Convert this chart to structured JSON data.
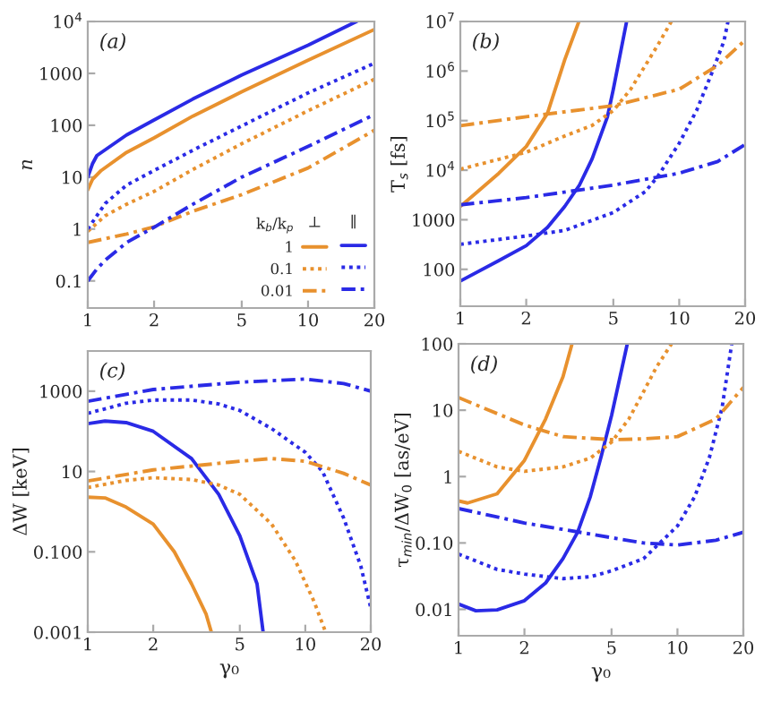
{
  "chart_data": [
    {
      "type": "line",
      "ylabel": "n",
      "annotations": [
        "(a)",
        "⊥",
        "∥"
      ],
      "legend_title": "k$_{b}$/k$_{p}$",
      "legend": "bottom right",
      "log": "xy",
      "xlim": [
        1,
        20
      ],
      "xticks": [
        1,
        2,
        5,
        10,
        20
      ],
      "ylim": [
        0.03,
        10000
      ],
      "yticks": [
        0.1,
        1,
        10,
        100,
        1000,
        {
          "value": 10000,
          "label": "10$^{4}$"
        }
      ],
      "series": [
        {
          "name": "1",
          "color": "#e8912e",
          "line_style": "solid",
          "x": [
            1,
            1.05,
            1.15,
            1.5,
            2,
            3,
            5,
            10,
            20
          ],
          "values": [
            5.7,
            9,
            13.4,
            30,
            57,
            150,
            440,
            1800,
            7000
          ]
        },
        {
          "color": "#2a2ae6",
          "line_style": "solid",
          "x": [
            1,
            1.05,
            1.1,
            1.5,
            2,
            3,
            5,
            10,
            16.6
          ],
          "values": [
            10,
            18,
            26,
            65,
            126,
            320,
            930,
            3500,
            10000
          ]
        },
        {
          "name": "0.1",
          "color": "#e8912e",
          "line_style": "dotted",
          "x": [
            1,
            1.2,
            1.5,
            2,
            3,
            5,
            10,
            20
          ],
          "values": [
            0.9,
            1.8,
            3,
            5.3,
            14,
            44,
            190,
            770
          ]
        },
        {
          "color": "#2a2ae6",
          "line_style": "dotted",
          "x": [
            1,
            1.2,
            1.5,
            2,
            3,
            5,
            10,
            20
          ],
          "values": [
            1,
            3.1,
            7,
            13.4,
            33,
            97,
            420,
            1570
          ]
        },
        {
          "name": "0.01",
          "color": "#e8912e",
          "line_style": "dashdot",
          "x": [
            1,
            1.5,
            2,
            3,
            5,
            10,
            20
          ],
          "values": [
            0.55,
            0.8,
            1.1,
            2.2,
            4.6,
            15,
            80
          ]
        },
        {
          "color": "#2a2ae6",
          "line_style": "dashdot",
          "x": [
            1,
            1.1,
            1.2,
            1.5,
            2,
            3,
            5,
            10,
            20
          ],
          "values": [
            0.1,
            0.17,
            0.25,
            0.55,
            1.08,
            3,
            10,
            39,
            160
          ]
        }
      ]
    },
    {
      "type": "line",
      "ylabel": "T$_{s}$ [fs]",
      "annotations": [
        "(b)"
      ],
      "log": "xy",
      "xlim": [
        1,
        20
      ],
      "xticks": [
        1,
        2,
        5,
        10,
        20
      ],
      "ylim": [
        18,
        10000000
      ],
      "yticks": [
        100,
        1000,
        {
          "value": 10000,
          "label": "10$^{4}$"
        },
        {
          "value": 100000,
          "label": "10$^{5}$"
        },
        {
          "value": 1000000,
          "label": "10$^{6}$"
        },
        {
          "value": 10000000,
          "label": "10$^{7}$"
        }
      ],
      "series": [
        {
          "color": "#e8912e",
          "line_style": "solid",
          "x": [
            1,
            1.2,
            1.5,
            2,
            2.5,
            3,
            3.48
          ],
          "values": [
            1860,
            3700,
            8700,
            30000,
            140000,
            1700000,
            10000000
          ]
        },
        {
          "color": "#2a2ae6",
          "line_style": "solid",
          "x": [
            1,
            1.5,
            2,
            2.5,
            3,
            3.5,
            4,
            4.7,
            5,
            5.75
          ],
          "values": [
            58,
            150,
            300,
            700,
            1860,
            5000,
            17000,
            120000,
            430000,
            10000000
          ]
        },
        {
          "color": "#e8912e",
          "line_style": "dotted",
          "x": [
            1,
            2,
            3,
            4,
            5,
            6,
            7,
            8,
            9.2
          ],
          "values": [
            10500,
            23000,
            49000,
            80000,
            160000,
            430000,
            1300000,
            3400000,
            10000000
          ]
        },
        {
          "color": "#2a2ae6",
          "line_style": "dotted",
          "x": [
            1,
            2,
            3,
            5,
            7,
            8,
            10,
            12,
            14,
            16,
            16.7
          ],
          "values": [
            320,
            470,
            610,
            1400,
            3700,
            7600,
            35000,
            160000,
            850000,
            4000000,
            10000000
          ]
        },
        {
          "color": "#e8912e",
          "line_style": "dashdot",
          "x": [
            1,
            2,
            5,
            10,
            15,
            20
          ],
          "values": [
            79000,
            120000,
            200000,
            430000,
            1300000,
            4200000
          ]
        },
        {
          "color": "#2a2ae6",
          "line_style": "dashdot",
          "x": [
            1,
            2,
            5,
            10,
            15,
            20
          ],
          "values": [
            2000,
            2800,
            5000,
            8700,
            15000,
            33000
          ]
        }
      ]
    },
    {
      "type": "line",
      "xlabel": "γ₀",
      "ylabel": "ΔW [keV]",
      "annotations": [
        "(c)"
      ],
      "log": "xy",
      "xlim": [
        1,
        20
      ],
      "xticks": [
        1,
        2,
        5,
        10,
        20
      ],
      "ylim": [
        0.001,
        10000
      ],
      "yticks": [
        0.001,
        {
          "value": 0.1,
          "label": "0.100"
        },
        10,
        1000
      ],
      "series": [
        {
          "color": "#e8912e",
          "line_style": "solid",
          "x": [
            1,
            1.2,
            1.5,
            2,
            2.5,
            3,
            3.5,
            3.7
          ],
          "values": [
            2.3,
            2.2,
            1.3,
            0.49,
            0.1,
            0.016,
            0.0028,
            0.001
          ]
        },
        {
          "color": "#2a2ae6",
          "line_style": "solid",
          "x": [
            1,
            1.2,
            1.5,
            2,
            3,
            4,
            5,
            6,
            6.4
          ],
          "values": [
            155,
            180,
            165,
            100,
            21,
            2.7,
            0.25,
            0.016,
            0.001
          ]
        },
        {
          "color": "#e8912e",
          "line_style": "dotted",
          "x": [
            1,
            1.5,
            2,
            3,
            4,
            5,
            7,
            9,
            11,
            12.4
          ],
          "values": [
            4,
            6,
            7,
            6.3,
            4.6,
            2.7,
            0.49,
            0.06,
            0.0056,
            0.001
          ]
        },
        {
          "color": "#2a2ae6",
          "line_style": "dotted",
          "x": [
            1,
            1.5,
            2,
            3,
            4,
            5,
            7,
            10,
            12,
            15,
            18,
            20
          ],
          "values": [
            280,
            500,
            600,
            600,
            480,
            330,
            117,
            30,
            10,
            0.7,
            0.044,
            0.004
          ]
        },
        {
          "color": "#e8912e",
          "line_style": "dashdot",
          "x": [
            1,
            2,
            5,
            7,
            10,
            15,
            20
          ],
          "values": [
            5.8,
            11,
            18,
            21,
            18,
            9,
            4.6
          ]
        },
        {
          "color": "#2a2ae6",
          "line_style": "dashdot",
          "x": [
            1,
            2,
            5,
            10,
            15,
            20
          ],
          "values": [
            560,
            1100,
            1670,
            2000,
            1550,
            1000
          ]
        }
      ]
    },
    {
      "type": "line",
      "xlabel": "γ₀",
      "ylabel": "τ$_{min}$/ΔW$_{0}$ [as/eV]",
      "annotations": [
        "(d)"
      ],
      "log": "xy",
      "xlim": [
        1,
        20
      ],
      "xticks": [
        1,
        2,
        5,
        10,
        20
      ],
      "ylim": [
        0.004,
        100
      ],
      "yticks": [
        0.01,
        {
          "value": 0.1,
          "label": "0.10"
        },
        1,
        10,
        100
      ],
      "series": [
        {
          "color": "#e8912e",
          "line_style": "solid",
          "x": [
            1,
            1.1,
            1.5,
            2,
            2.5,
            3,
            3.3
          ],
          "values": [
            0.43,
            0.4,
            0.55,
            1.75,
            7.4,
            32,
            100
          ]
        },
        {
          "color": "#2a2ae6",
          "line_style": "solid",
          "x": [
            1,
            1.2,
            1.5,
            2,
            2.5,
            3,
            3.5,
            4,
            4.5,
            5,
            5.9
          ],
          "values": [
            0.012,
            0.0095,
            0.0098,
            0.0135,
            0.025,
            0.058,
            0.145,
            0.5,
            2.1,
            8.3,
            100
          ]
        },
        {
          "color": "#e8912e",
          "line_style": "dotted",
          "x": [
            1,
            1.5,
            2,
            3,
            4,
            5,
            6,
            7,
            8,
            9.4
          ],
          "values": [
            2.4,
            1.4,
            1.2,
            1.4,
            1.9,
            3.3,
            7.4,
            19,
            44,
            100
          ]
        },
        {
          "color": "#2a2ae6",
          "line_style": "dotted",
          "x": [
            1,
            1.5,
            2,
            3,
            4,
            5,
            7,
            10,
            12,
            14,
            16,
            17.7
          ],
          "values": [
            0.068,
            0.04,
            0.034,
            0.029,
            0.031,
            0.038,
            0.058,
            0.18,
            0.5,
            1.95,
            11,
            100
          ]
        },
        {
          "color": "#e8912e",
          "line_style": "dashdot",
          "x": [
            1,
            2,
            3,
            5,
            7,
            10,
            15,
            20
          ],
          "values": [
            15.5,
            6,
            4,
            3.6,
            3.7,
            4,
            7.4,
            22
          ]
        },
        {
          "color": "#2a2ae6",
          "line_style": "dashdot",
          "x": [
            1,
            2,
            3,
            5,
            7,
            10,
            15,
            20
          ],
          "values": [
            0.33,
            0.2,
            0.16,
            0.12,
            0.1,
            0.093,
            0.11,
            0.145
          ]
        }
      ]
    }
  ]
}
